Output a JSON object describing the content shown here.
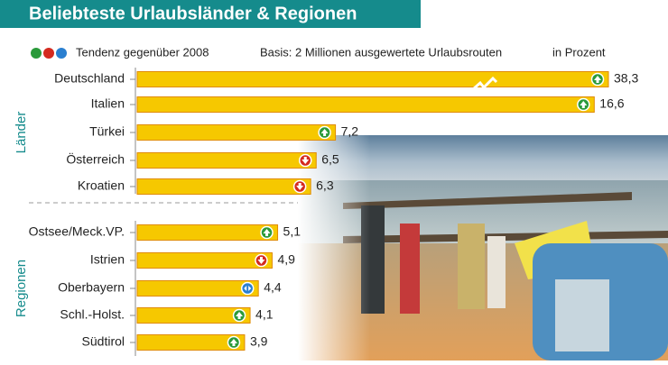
{
  "chart_data": {
    "type": "bar",
    "title": "Beliebteste Urlaubsländer & Regionen",
    "legend_label": "Tendenz gegenüber 2008",
    "subtitle": "Basis: 2 Millionen ausgewertete Urlaubsrouten",
    "unit_note": "in Prozent",
    "color": "#f6c800",
    "axis_break": true,
    "groups": [
      {
        "name": "Länder",
        "categories": [
          "Deutschland",
          "Italien",
          "Türkei",
          "Österreich",
          "Kroatien"
        ],
        "values": [
          38.3,
          16.6,
          7.2,
          6.5,
          6.3
        ],
        "value_labels": [
          "38,3",
          "16,6",
          "7,2",
          "6,5",
          "6,3"
        ],
        "trend": [
          "up",
          "up",
          "up",
          "down",
          "down"
        ]
      },
      {
        "name": "Regionen",
        "categories": [
          "Ostsee/Meck.VP.",
          "Istrien",
          "Oberbayern",
          "Schl.-Holst.",
          "Südtirol"
        ],
        "values": [
          5.1,
          4.9,
          4.4,
          4.1,
          3.9
        ],
        "value_labels": [
          "5,1",
          "4,9",
          "4,4",
          "4,1",
          "3,9"
        ],
        "trend": [
          "up",
          "down",
          "same",
          "up",
          "up"
        ]
      }
    ]
  }
}
